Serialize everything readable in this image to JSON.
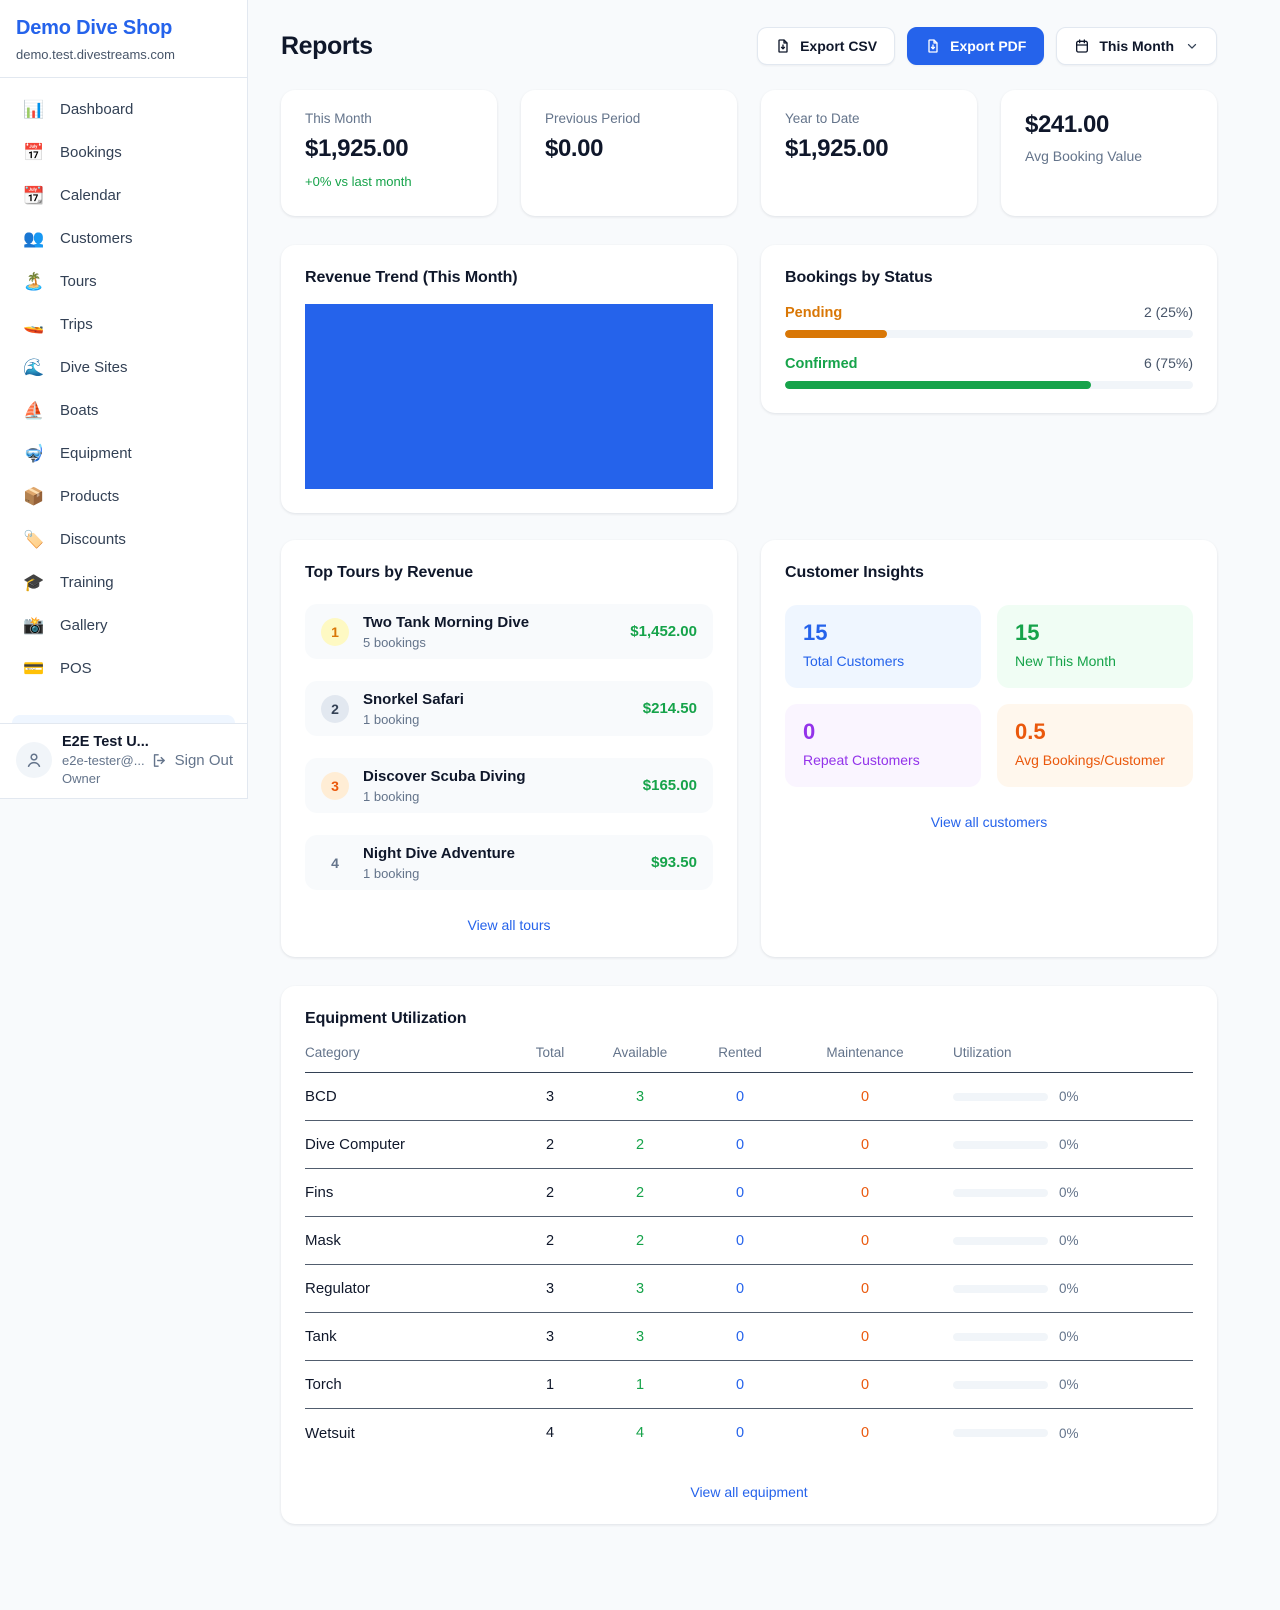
{
  "sidebar": {
    "shop_name": "Demo Dive Shop",
    "shop_domain": "demo.test.divestreams.com",
    "items": [
      {
        "icon": "📊",
        "label": "Dashboard"
      },
      {
        "icon": "📅",
        "label": "Bookings"
      },
      {
        "icon": "📆",
        "label": "Calendar"
      },
      {
        "icon": "👥",
        "label": "Customers"
      },
      {
        "icon": "🏝️",
        "label": "Tours"
      },
      {
        "icon": "🚤",
        "label": "Trips"
      },
      {
        "icon": "🌊",
        "label": "Dive Sites"
      },
      {
        "icon": "⛵",
        "label": "Boats"
      },
      {
        "icon": "🤿",
        "label": "Equipment"
      },
      {
        "icon": "📦",
        "label": "Products"
      },
      {
        "icon": "🏷️",
        "label": "Discounts"
      },
      {
        "icon": "🎓",
        "label": "Training"
      },
      {
        "icon": "📸",
        "label": "Gallery"
      },
      {
        "icon": "💳",
        "label": "POS"
      }
    ],
    "user": {
      "name": "E2E Test U...",
      "email": "e2e-tester@...",
      "role": "Owner",
      "sign_out": "Sign Out"
    }
  },
  "header": {
    "title": "Reports",
    "export_csv": "Export CSV",
    "export_pdf": "Export PDF",
    "period": "This Month",
    "accent_color": "#2563eb"
  },
  "stats": [
    {
      "label": "This Month",
      "value": "$1,925.00",
      "sub": "+0% vs last month"
    },
    {
      "label": "Previous Period",
      "value": "$0.00"
    },
    {
      "label": "Year to Date",
      "value": "$1,925.00"
    },
    {
      "label": "Avg Booking Value",
      "value": "$241.00"
    }
  ],
  "revenue_trend": {
    "title": "Revenue Trend (This Month)",
    "bar_color": "#2563eb"
  },
  "bookings_by_status": {
    "title": "Bookings by Status",
    "rows": [
      {
        "label": "Pending",
        "count": "2 (25%)",
        "pct": 25,
        "color": "#d97706"
      },
      {
        "label": "Confirmed",
        "count": "6 (75%)",
        "pct": 75,
        "color": "#16a34a"
      }
    ]
  },
  "top_tours": {
    "title": "Top Tours by Revenue",
    "rows": [
      {
        "rank": "1",
        "name": "Two Tank Morning Dive",
        "bookings": "5 bookings",
        "revenue": "$1,452.00"
      },
      {
        "rank": "2",
        "name": "Snorkel Safari",
        "bookings": "1 booking",
        "revenue": "$214.50"
      },
      {
        "rank": "3",
        "name": "Discover Scuba Diving",
        "bookings": "1 booking",
        "revenue": "$165.00"
      },
      {
        "rank": "4",
        "name": "Night Dive Adventure",
        "bookings": "1 booking",
        "revenue": "$93.50"
      }
    ],
    "view_all": "View all tours"
  },
  "customer_insights": {
    "title": "Customer Insights",
    "cards": [
      {
        "value": "15",
        "label": "Total Customers",
        "color": "#2563eb"
      },
      {
        "value": "15",
        "label": "New This Month",
        "color": "#16a34a"
      },
      {
        "value": "0",
        "label": "Repeat Customers",
        "color": "#9333ea"
      },
      {
        "value": "0.5",
        "label": "Avg Bookings/Customer",
        "color": "#ea580c"
      }
    ],
    "view_all": "View all customers"
  },
  "equipment": {
    "title": "Equipment Utilization",
    "columns": [
      "Category",
      "Total",
      "Available",
      "Rented",
      "Maintenance",
      "Utilization"
    ],
    "rows": [
      {
        "category": "BCD",
        "total": "3",
        "available": "3",
        "rented": "0",
        "maintenance": "0",
        "utilization": "0%",
        "utilization_pct": 0
      },
      {
        "category": "Dive Computer",
        "total": "2",
        "available": "2",
        "rented": "0",
        "maintenance": "0",
        "utilization": "0%",
        "utilization_pct": 0
      },
      {
        "category": "Fins",
        "total": "2",
        "available": "2",
        "rented": "0",
        "maintenance": "0",
        "utilization": "0%",
        "utilization_pct": 0
      },
      {
        "category": "Mask",
        "total": "2",
        "available": "2",
        "rented": "0",
        "maintenance": "0",
        "utilization": "0%",
        "utilization_pct": 0
      },
      {
        "category": "Regulator",
        "total": "3",
        "available": "3",
        "rented": "0",
        "maintenance": "0",
        "utilization": "0%",
        "utilization_pct": 0
      },
      {
        "category": "Tank",
        "total": "3",
        "available": "3",
        "rented": "0",
        "maintenance": "0",
        "utilization": "0%",
        "utilization_pct": 0
      },
      {
        "category": "Torch",
        "total": "1",
        "available": "1",
        "rented": "0",
        "maintenance": "0",
        "utilization": "0%",
        "utilization_pct": 0
      },
      {
        "category": "Wetsuit",
        "total": "4",
        "available": "4",
        "rented": "0",
        "maintenance": "0",
        "utilization": "0%",
        "utilization_pct": 0
      }
    ],
    "view_all": "View all equipment"
  }
}
